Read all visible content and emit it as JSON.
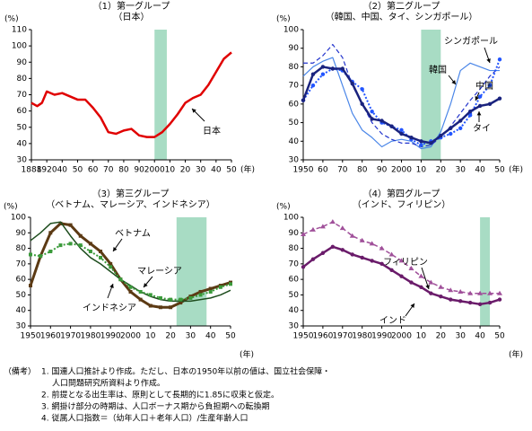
{
  "charts": [
    {
      "type": "line",
      "title": "（1）第一グループ",
      "subtitle": "（日本）",
      "y_unit": "(%)",
      "x_unit": "(年)",
      "ylim": [
        30,
        110
      ],
      "yticks": [
        30,
        40,
        50,
        60,
        70,
        80,
        90,
        100,
        110
      ],
      "xlim": [
        1888,
        2050
      ],
      "xticks": [
        1888,
        1920,
        {
          "value": 1940,
          "label": "40"
        },
        {
          "value": 1950,
          "label": "50"
        },
        {
          "value": 1960,
          "label": "60"
        },
        {
          "value": 1970,
          "label": "70"
        },
        {
          "value": 1980,
          "label": "80"
        },
        {
          "value": 1990,
          "label": "90"
        },
        2000,
        {
          "value": 2010,
          "label": "10"
        },
        {
          "value": 2020,
          "label": "20"
        },
        {
          "value": 2030,
          "label": "30"
        },
        {
          "value": 2040,
          "label": "40"
        },
        {
          "value": 2050,
          "label": "50"
        }
      ],
      "shade": [
        2000,
        2008
      ],
      "x": [
        1888,
        1900,
        1910,
        1920,
        1930,
        1940,
        1950,
        1955,
        1960,
        1965,
        1970,
        1975,
        1980,
        1985,
        1990,
        1995,
        2000,
        2005,
        2010,
        2015,
        2020,
        2025,
        2030,
        2035,
        2040,
        2045,
        2050
      ],
      "series": [
        {
          "name": "日本",
          "color": "#e00000",
          "style": "solid",
          "marker": null,
          "width": 2.5,
          "values": [
            65,
            63,
            65,
            72,
            70,
            71,
            67,
            67,
            62,
            56,
            47,
            46,
            48,
            49,
            45,
            44,
            44,
            47,
            52,
            58,
            65,
            68,
            70,
            76,
            84,
            92,
            96
          ]
        }
      ]
    },
    {
      "type": "line",
      "title": "（2）第二グループ",
      "subtitle": "（韓国、中国、タイ、シンガポール）",
      "y_unit": "(%)",
      "x_unit": "(年)",
      "ylim": [
        30,
        100
      ],
      "yticks": [
        30,
        40,
        50,
        60,
        70,
        80,
        90,
        100
      ],
      "xlim": [
        1950,
        2050
      ],
      "xticks": [
        1950,
        {
          "value": 1960,
          "label": "60"
        },
        {
          "value": 1970,
          "label": "70"
        },
        {
          "value": 1980,
          "label": "80"
        },
        {
          "value": 1990,
          "label": "90"
        },
        2000,
        {
          "value": 2010,
          "label": "10"
        },
        {
          "value": 2020,
          "label": "20"
        },
        {
          "value": 2030,
          "label": "30"
        },
        {
          "value": 2040,
          "label": "40"
        },
        {
          "value": 2050,
          "label": "50"
        }
      ],
      "shade": [
        2010,
        2020
      ],
      "x": [
        1950,
        1955,
        1960,
        1965,
        1970,
        1975,
        1980,
        1985,
        1990,
        1995,
        2000,
        2005,
        2010,
        2015,
        2020,
        2025,
        2030,
        2035,
        2040,
        2045,
        2050
      ],
      "series": [
        {
          "name": "シンガポール",
          "color": "#4a86e8",
          "style": "solid",
          "marker": null,
          "width": 1.2,
          "values": [
            75,
            80,
            83,
            85,
            70,
            55,
            46,
            42,
            37,
            40,
            41,
            40,
            36,
            37,
            45,
            60,
            78,
            82,
            80,
            78,
            78
          ]
        },
        {
          "name": "韓国",
          "color": "#2233cc",
          "style": "dashed",
          "marker": null,
          "width": 1.2,
          "values": [
            82,
            82,
            86,
            92,
            85,
            70,
            60,
            50,
            44,
            41,
            39,
            39,
            37,
            38,
            42,
            48,
            55,
            62,
            68,
            75,
            80
          ]
        },
        {
          "name": "中国",
          "color": "#2255ff",
          "style": "dotted",
          "marker": "circle",
          "width": 2,
          "values": [
            62,
            70,
            76,
            79,
            78,
            72,
            68,
            56,
            50,
            48,
            46,
            41,
            38,
            40,
            42,
            44,
            47,
            54,
            64,
            70,
            84
          ]
        },
        {
          "name": "タイ",
          "color": "#1a237e",
          "style": "solid",
          "marker": "circle",
          "width": 2.5,
          "values": [
            62,
            76,
            80,
            79,
            79,
            71,
            60,
            52,
            51,
            48,
            44,
            42,
            40,
            39,
            43,
            47,
            51,
            56,
            59,
            60,
            63
          ]
        }
      ]
    },
    {
      "type": "line",
      "title": "（3）第三グループ",
      "subtitle": "（ベトナム、マレーシア、インドネシア）",
      "y_unit": "(%)",
      "x_unit": "(年)",
      "ylim": [
        30,
        100
      ],
      "yticks": [
        30,
        40,
        50,
        60,
        70,
        80,
        90,
        100
      ],
      "xlim": [
        1950,
        2050
      ],
      "xticks": [
        1950,
        1960,
        1970,
        1980,
        1990,
        2000,
        {
          "value": 2010,
          "label": "10"
        },
        {
          "value": 2020,
          "label": "20"
        },
        {
          "value": 2030,
          "label": "30"
        },
        {
          "value": 2040,
          "label": "40"
        },
        {
          "value": 2050,
          "label": "50"
        }
      ],
      "shade": [
        2023,
        2038
      ],
      "x": [
        1950,
        1955,
        1960,
        1965,
        1970,
        1975,
        1980,
        1985,
        1990,
        1995,
        2000,
        2005,
        2010,
        2015,
        2020,
        2025,
        2030,
        2035,
        2040,
        2045,
        2050
      ],
      "series": [
        {
          "name": "ベトナム",
          "color": "#5c3a14",
          "style": "solid",
          "marker": "square",
          "width": 3,
          "values": [
            56,
            75,
            90,
            96,
            95,
            88,
            83,
            78,
            70,
            60,
            52,
            47,
            43,
            42,
            42,
            45,
            49,
            52,
            54,
            56,
            58
          ]
        },
        {
          "name": "マレーシア",
          "color": "#1e4d1e",
          "style": "solid",
          "marker": null,
          "width": 1.5,
          "values": [
            85,
            90,
            96,
            97,
            88,
            80,
            74,
            70,
            65,
            60,
            56,
            52,
            49,
            47,
            46,
            46,
            46,
            47,
            48,
            50,
            53
          ]
        },
        {
          "name": "インドネシア",
          "color": "#3a9a3a",
          "style": "dotted",
          "marker": "square",
          "width": 2,
          "values": [
            76,
            75,
            78,
            82,
            83,
            82,
            78,
            74,
            68,
            60,
            55,
            52,
            50,
            48,
            47,
            47,
            48,
            50,
            52,
            55,
            57
          ]
        }
      ]
    },
    {
      "type": "line",
      "title": "（4）第四グループ",
      "subtitle": "（インド、フィリピン）",
      "y_unit": "(%)",
      "x_unit": "(年)",
      "ylim": [
        30,
        100
      ],
      "yticks": [
        30,
        40,
        50,
        60,
        70,
        80,
        90,
        100
      ],
      "xlim": [
        1950,
        2050
      ],
      "xticks": [
        1950,
        1960,
        1970,
        1980,
        1990,
        2000,
        {
          "value": 2010,
          "label": "10"
        },
        {
          "value": 2020,
          "label": "20"
        },
        {
          "value": 2030,
          "label": "30"
        },
        {
          "value": 2040,
          "label": "40"
        },
        {
          "value": 2050,
          "label": "50"
        }
      ],
      "shade": [
        2040,
        2045
      ],
      "x": [
        1950,
        1955,
        1960,
        1965,
        1970,
        1975,
        1980,
        1985,
        1990,
        1995,
        2000,
        2005,
        2010,
        2015,
        2020,
        2025,
        2030,
        2035,
        2040,
        2045,
        2050
      ],
      "series": [
        {
          "name": "フィリピン",
          "color": "#a0509a",
          "style": "dashed",
          "marker": "triangle",
          "width": 1.5,
          "values": [
            89,
            92,
            94,
            97,
            93,
            88,
            85,
            83,
            80,
            76,
            72,
            67,
            62,
            58,
            55,
            53,
            52,
            51,
            51,
            51,
            51
          ]
        },
        {
          "name": "インド",
          "color": "#6a1b6a",
          "style": "solid",
          "marker": "circle",
          "width": 2.5,
          "values": [
            68,
            73,
            77,
            81,
            79,
            76,
            74,
            72,
            70,
            66,
            62,
            58,
            55,
            51,
            49,
            47,
            46,
            45,
            44,
            45,
            47
          ]
        }
      ]
    }
  ],
  "notes": {
    "label": "（備考）",
    "items": [
      [
        "1. 国連人口推計より作成。ただし、日本の1950年以前の値は、国立社会保障・",
        "人口問題研究所資料より作成。"
      ],
      [
        "2. 前提となる出生率は、原則として長期的に1.85に収束と仮定。"
      ],
      [
        "3. 網掛け部分の時期は、人口ボーナス期から負担期への転換期"
      ],
      [
        "4. 従属人口指数＝（幼年人口＋老年人口）/生産年齢人口"
      ]
    ]
  }
}
